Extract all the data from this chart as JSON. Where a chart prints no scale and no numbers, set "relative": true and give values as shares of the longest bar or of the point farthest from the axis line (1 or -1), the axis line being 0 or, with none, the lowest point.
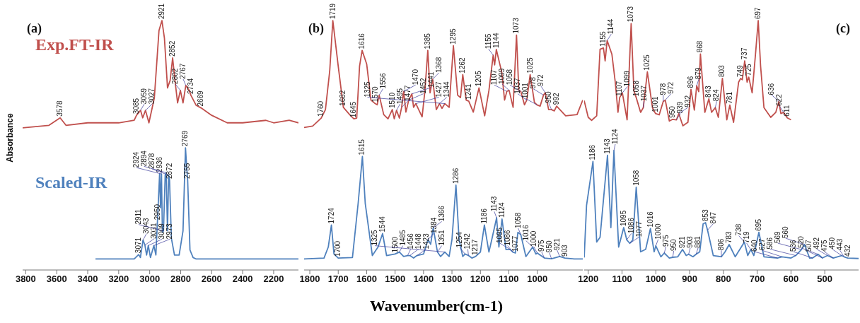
{
  "chart_data": [
    {
      "type": "line",
      "relative": true,
      "ylabel": "Absorbance",
      "xlim": [
        3820,
        2040
      ],
      "xticks": [
        3800,
        3600,
        3400,
        3200,
        3000,
        2800,
        2600,
        2400,
        2200
      ],
      "legend": false,
      "grid": false,
      "series": [
        {
          "name": "Exp.FT-IR",
          "color": "#c0504d",
          "x": [
            3820,
            3650,
            3578,
            3540,
            3400,
            3200,
            3100,
            3085,
            3059,
            3045,
            3027,
            3005,
            2970,
            2940,
            2921,
            2905,
            2885,
            2868,
            2852,
            2835,
            2820,
            2802,
            2785,
            2767,
            2745,
            2734,
            2700,
            2669,
            2600,
            2500,
            2400,
            2250,
            2200,
            2100,
            2040
          ],
          "values": [
            0.57,
            0.58,
            0.61,
            0.58,
            0.59,
            0.59,
            0.6,
            0.62,
            0.64,
            0.61,
            0.64,
            0.59,
            0.69,
            0.96,
            1.0,
            0.93,
            0.73,
            0.76,
            0.85,
            0.75,
            0.67,
            0.72,
            0.67,
            0.74,
            0.72,
            0.7,
            0.66,
            0.65,
            0.62,
            0.59,
            0.59,
            0.6,
            0.59,
            0.6,
            0.59
          ]
        },
        {
          "name": "Scaled-IR",
          "color": "#4f81bd",
          "x": [
            3350,
            3100,
            3071,
            3060,
            3043,
            3031,
            3020,
            3009,
            2995,
            2973,
            2960,
            2950,
            2936,
            2930,
            2924,
            2918,
            2911,
            2900,
            2894,
            2885,
            2878,
            2872,
            2860,
            2840,
            2810,
            2785,
            2769,
            2762,
            2755,
            2740,
            2720,
            2700,
            2040
          ],
          "values": [
            0.044,
            0.044,
            0.062,
            0.05,
            0.12,
            0.1,
            0.06,
            0.098,
            0.05,
            0.098,
            0.06,
            0.195,
            0.385,
            0.25,
            0.385,
            0.15,
            0.157,
            0.38,
            0.39,
            0.157,
            0.38,
            0.36,
            0.127,
            0.06,
            0.06,
            0.157,
            0.49,
            0.42,
            0.36,
            0.08,
            0.05,
            0.044,
            0.044
          ]
        }
      ],
      "annotations": [
        "(a)",
        {
          "text": "3578",
          "x": 3578,
          "y": 0.61
        },
        {
          "text": "3085",
          "x": 3085,
          "y": 0.62
        },
        {
          "text": "3059",
          "x": 3059,
          "y": 0.64
        },
        {
          "text": "3027",
          "x": 3027,
          "y": 0.64
        },
        {
          "text": "2921",
          "x": 2921,
          "y": 1.0
        },
        {
          "text": "2852",
          "x": 2852,
          "y": 0.85
        },
        {
          "text": "2802",
          "x": 2802,
          "y": 0.72
        },
        {
          "text": "2767",
          "x": 2767,
          "y": 0.74
        },
        {
          "text": "2734",
          "x": 2734,
          "y": 0.7
        },
        {
          "text": "2669",
          "x": 2669,
          "y": 0.65
        },
        {
          "text": "3071",
          "x": 3071,
          "y": 0.062
        },
        {
          "text": "3043",
          "x": 3043,
          "y": 0.12
        },
        {
          "text": "3031",
          "x": 3031,
          "y": 0.1
        },
        {
          "text": "3009",
          "x": 3009,
          "y": 0.098
        },
        {
          "text": "2973",
          "x": 2973,
          "y": 0.098
        },
        {
          "text": "2950",
          "x": 2950,
          "y": 0.195
        },
        {
          "text": "2936",
          "x": 2936,
          "y": 0.385
        },
        {
          "text": "2924",
          "x": 2924,
          "y": 0.385
        },
        {
          "text": "2911",
          "x": 2911,
          "y": 0.157
        },
        {
          "text": "2894",
          "x": 2894,
          "y": 0.39
        },
        {
          "text": "2878",
          "x": 2878,
          "y": 0.38
        },
        {
          "text": "2872",
          "x": 2872,
          "y": 0.36
        },
        {
          "text": "2769",
          "x": 2769,
          "y": 0.49
        },
        {
          "text": "2755",
          "x": 2755,
          "y": 0.36
        }
      ]
    },
    {
      "type": "line",
      "relative": true,
      "xlabel": "Wavenumber(cm-1)",
      "xlim": [
        1820,
        840
      ],
      "xticks": [
        1800,
        1700,
        1600,
        1500,
        1400,
        1300,
        1200,
        1100,
        1000
      ],
      "legend": false,
      "grid": false,
      "series": [
        {
          "color": "#c0504d",
          "x": [
            1820,
            1790,
            1760,
            1745,
            1730,
            1719,
            1700,
            1682,
            1660,
            1645,
            1635,
            1625,
            1616,
            1600,
            1585,
            1570,
            1563,
            1556,
            1540,
            1525,
            1510,
            1503,
            1495,
            1485,
            1477,
            1470,
            1462,
            1452,
            1441,
            1435,
            1427,
            1405,
            1395,
            1385,
            1377,
            1368,
            1355,
            1344,
            1335,
            1325,
            1310,
            1295,
            1280,
            1270,
            1262,
            1250,
            1241,
            1225,
            1205,
            1185,
            1170,
            1155,
            1150,
            1144,
            1125,
            1115,
            1107,
            1099,
            1085,
            1073,
            1065,
            1058,
            1045,
            1037,
            1025,
            1010,
            1001,
            990,
            978,
            972,
            960,
            950,
            940,
            932,
            900,
            860,
            840
          ],
          "values": [
            0.571,
            0.577,
            0.609,
            0.643,
            0.797,
            1.0,
            0.817,
            0.652,
            0.623,
            0.606,
            0.609,
            0.817,
            0.88,
            0.826,
            0.681,
            0.667,
            0.662,
            0.701,
            0.623,
            0.606,
            0.643,
            0.606,
            0.64,
            0.609,
            0.652,
            0.716,
            0.633,
            0.681,
            0.706,
            0.652,
            0.667,
            0.614,
            0.72,
            0.88,
            0.71,
            0.765,
            0.643,
            0.667,
            0.648,
            0.667,
            0.652,
            0.899,
            0.701,
            0.691,
            0.783,
            0.681,
            0.677,
            0.633,
            0.73,
            0.618,
            0.72,
            0.861,
            0.822,
            0.884,
            0.793,
            0.681,
            0.716,
            0.72,
            0.652,
            0.942,
            0.72,
            0.716,
            0.662,
            0.681,
            0.783,
            0.672,
            0.662,
            0.657,
            0.701,
            0.711,
            0.643,
            0.643,
            0.638,
            0.657,
            0.618,
            0.623,
            0.681
          ]
        },
        {
          "color": "#4f81bd",
          "x": [
            1820,
            1750,
            1735,
            1724,
            1715,
            1700,
            1650,
            1630,
            1615,
            1605,
            1580,
            1560,
            1544,
            1530,
            1500,
            1485,
            1470,
            1456,
            1448,
            1435,
            1423,
            1400,
            1384,
            1375,
            1366,
            1351,
            1340,
            1325,
            1310,
            1300,
            1286,
            1275,
            1262,
            1254,
            1242,
            1230,
            1217,
            1200,
            1186,
            1170,
            1160,
            1143,
            1135,
            1124,
            1110,
            1095,
            1086,
            1077,
            1068,
            1058,
            1040,
            1016,
            1005,
            1000,
            975,
            950,
            921,
            903,
            870,
            840
          ],
          "values": [
            0.044,
            0.048,
            0.092,
            0.18,
            0.064,
            0.048,
            0.05,
            0.267,
            0.455,
            0.267,
            0.058,
            0.092,
            0.146,
            0.058,
            0.064,
            0.072,
            0.054,
            0.058,
            0.058,
            0.048,
            0.058,
            0.064,
            0.122,
            0.103,
            0.169,
            0.072,
            0.054,
            0.072,
            0.054,
            0.122,
            0.34,
            0.122,
            0.054,
            0.064,
            0.058,
            0.048,
            0.054,
            0.072,
            0.18,
            0.072,
            0.122,
            0.209,
            0.092,
            0.204,
            0.082,
            0.082,
            0.072,
            0.068,
            0.151,
            0.142,
            0.054,
            0.092,
            0.064,
            0.068,
            0.048,
            0.045,
            0.054,
            0.048,
            0.044,
            0.044
          ]
        }
      ],
      "annotations": [
        "(b)",
        {
          "text": "1760",
          "x": 1760,
          "y": 0.609
        },
        {
          "text": "1719",
          "x": 1719,
          "y": 1.0
        },
        {
          "text": "1682",
          "x": 1682,
          "y": 0.652
        },
        {
          "text": "1645",
          "x": 1645,
          "y": 0.606
        },
        {
          "text": "1616",
          "x": 1616,
          "y": 0.88
        },
        {
          "text": "1570",
          "x": 1570,
          "y": 0.667
        },
        {
          "text": "1556",
          "x": 1556,
          "y": 0.701
        },
        {
          "text": "1510",
          "x": 1510,
          "y": 0.643
        },
        {
          "text": "1495",
          "x": 1495,
          "y": 0.64
        },
        {
          "text": "1477",
          "x": 1477,
          "y": 0.652
        },
        {
          "text": "1470",
          "x": 1470,
          "y": 0.716
        },
        {
          "text": "1452",
          "x": 1452,
          "y": 0.681
        },
        {
          "text": "1441",
          "x": 1441,
          "y": 0.706
        },
        {
          "text": "1427",
          "x": 1427,
          "y": 0.667
        },
        {
          "text": "1385",
          "x": 1385,
          "y": 0.88
        },
        {
          "text": "1368",
          "x": 1368,
          "y": 0.765
        },
        {
          "text": "1344",
          "x": 1344,
          "y": 0.667
        },
        {
          "text": "1325",
          "x": 1325,
          "y": 0.667
        },
        {
          "text": "1295",
          "x": 1295,
          "y": 0.899
        },
        {
          "text": "1262",
          "x": 1262,
          "y": 0.783
        },
        {
          "text": "1241",
          "x": 1241,
          "y": 0.677
        },
        {
          "text": "1205",
          "x": 1205,
          "y": 0.73
        },
        {
          "text": "1155",
          "x": 1155,
          "y": 0.861
        },
        {
          "text": "1144",
          "x": 1144,
          "y": 0.884
        },
        {
          "text": "1107",
          "x": 1107,
          "y": 0.716
        },
        {
          "text": "1099",
          "x": 1099,
          "y": 0.72
        },
        {
          "text": "1073",
          "x": 1073,
          "y": 0.942
        },
        {
          "text": "1058",
          "x": 1058,
          "y": 0.716
        },
        {
          "text": "1037",
          "x": 1037,
          "y": 0.681
        },
        {
          "text": "1025",
          "x": 1025,
          "y": 0.783
        },
        {
          "text": "1001",
          "x": 1001,
          "y": 0.662
        },
        {
          "text": "978",
          "x": 978,
          "y": 0.701
        },
        {
          "text": "972",
          "x": 972,
          "y": 0.711
        },
        {
          "text": "950",
          "x": 950,
          "y": 0.643
        },
        {
          "text": "992",
          "x": 932,
          "y": 0.657
        },
        {
          "text": "1724",
          "x": 1724,
          "y": 0.18
        },
        {
          "text": "1700",
          "x": 1700,
          "y": 0.048
        },
        {
          "text": "1615",
          "x": 1615,
          "y": 0.455
        },
        {
          "text": "1544",
          "x": 1544,
          "y": 0.146
        },
        {
          "text": "1500",
          "x": 1500,
          "y": 0.064
        },
        {
          "text": "1485",
          "x": 1485,
          "y": 0.072
        },
        {
          "text": "1456",
          "x": 1456,
          "y": 0.058
        },
        {
          "text": "1448",
          "x": 1448,
          "y": 0.058
        },
        {
          "text": "1423",
          "x": 1423,
          "y": 0.058
        },
        {
          "text": "1384",
          "x": 1384,
          "y": 0.122
        },
        {
          "text": "1366",
          "x": 1366,
          "y": 0.169
        },
        {
          "text": "1351",
          "x": 1351,
          "y": 0.072
        },
        {
          "text": "1325",
          "x": 1325,
          "y": 0.072
        },
        {
          "text": "1286",
          "x": 1286,
          "y": 0.34
        },
        {
          "text": "1254",
          "x": 1254,
          "y": 0.064
        },
        {
          "text": "1242",
          "x": 1242,
          "y": 0.058
        },
        {
          "text": "1217",
          "x": 1217,
          "y": 0.054
        },
        {
          "text": "1186",
          "x": 1186,
          "y": 0.18
        },
        {
          "text": "1143",
          "x": 1143,
          "y": 0.209
        },
        {
          "text": "1124",
          "x": 1124,
          "y": 0.204
        },
        {
          "text": "1095",
          "x": 1095,
          "y": 0.082
        },
        {
          "text": "1086",
          "x": 1086,
          "y": 0.072
        },
        {
          "text": "1077",
          "x": 1077,
          "y": 0.068
        },
        {
          "text": "1058",
          "x": 1058,
          "y": 0.142
        },
        {
          "text": "1016",
          "x": 1016,
          "y": 0.092
        },
        {
          "text": "1000",
          "x": 1000,
          "y": 0.068
        },
        {
          "text": "975",
          "x": 975,
          "y": 0.048
        },
        {
          "text": "950",
          "x": 950,
          "y": 0.045
        },
        {
          "text": "921",
          "x": 921,
          "y": 0.054
        },
        {
          "text": "903",
          "x": 903,
          "y": 0.048
        }
      ]
    },
    {
      "type": "line",
      "relative": true,
      "xlim": [
        1212,
        400
      ],
      "xticks": [
        1200,
        1100,
        1000,
        900,
        800,
        700,
        600,
        500
      ],
      "legend": false,
      "grid": false,
      "series": [
        {
          "color": "#c0504d",
          "x": [
            1212,
            1200,
            1190,
            1175,
            1165,
            1155,
            1150,
            1144,
            1130,
            1120,
            1112,
            1107,
            1099,
            1085,
            1073,
            1065,
            1058,
            1045,
            1037,
            1025,
            1010,
            1001,
            990,
            978,
            972,
            960,
            950,
            939,
            932,
            920,
            905,
            896,
            886,
            879,
            873,
            868,
            855,
            843,
            835,
            824,
            815,
            803,
            790,
            781,
            770,
            755,
            749,
            744,
            737,
            730,
            725,
            715,
            705,
            697,
            690,
            680,
            660,
            645,
            636,
            630,
            622,
            611,
            600
          ],
          "values": [
            0.679,
            0.612,
            0.6,
            0.618,
            0.885,
            0.89,
            0.838,
            0.92,
            0.865,
            0.753,
            0.632,
            0.691,
            0.71,
            0.602,
            0.988,
            0.72,
            0.691,
            0.632,
            0.651,
            0.794,
            0.651,
            0.627,
            0.622,
            0.676,
            0.681,
            0.597,
            0.604,
            0.602,
            0.627,
            0.578,
            0.592,
            0.724,
            0.641,
            0.739,
            0.715,
            0.866,
            0.632,
            0.686,
            0.632,
            0.651,
            0.612,
            0.768,
            0.602,
            0.661,
            0.592,
            0.753,
            0.768,
            0.763,
            0.838,
            0.753,
            0.773,
            0.71,
            0.866,
            1.0,
            0.818,
            0.651,
            0.612,
            0.632,
            0.676,
            0.627,
            0.632,
            0.61,
            0.602
          ]
        },
        {
          "color": "#4f81bd",
          "x": [
            1212,
            1205,
            1186,
            1175,
            1165,
            1143,
            1133,
            1124,
            1110,
            1095,
            1086,
            1077,
            1068,
            1058,
            1045,
            1030,
            1016,
            1005,
            1000,
            985,
            975,
            960,
            950,
            935,
            921,
            910,
            903,
            890,
            881,
            870,
            860,
            853,
            847,
            830,
            806,
            795,
            783,
            765,
            738,
            728,
            719,
            710,
            695,
            680,
            640,
            627,
            600,
            586,
            569,
            560,
            545,
            536,
            520,
            507,
            492,
            475,
            450,
            443,
            432,
            400
          ],
          "values": [
            0.05,
            0.259,
            0.435,
            0.112,
            0.131,
            0.46,
            0.17,
            0.479,
            0.092,
            0.17,
            0.121,
            0.107,
            0.121,
            0.332,
            0.073,
            0.083,
            0.166,
            0.073,
            0.097,
            0.053,
            0.068,
            0.048,
            0.051,
            0.053,
            0.082,
            0.058,
            0.063,
            0.053,
            0.063,
            0.073,
            0.185,
            0.19,
            0.16,
            0.058,
            0.053,
            0.073,
            0.102,
            0.053,
            0.112,
            0.058,
            0.082,
            0.058,
            0.151,
            0.053,
            0.048,
            0.053,
            0.048,
            0.058,
            0.082,
            0.102,
            0.048,
            0.048,
            0.063,
            0.048,
            0.058,
            0.048,
            0.058,
            0.053,
            0.048,
            0.046
          ]
        }
      ],
      "annotations": [
        "(c)",
        {
          "text": "1155",
          "x": 1155,
          "y": 0.89
        },
        {
          "text": "1144",
          "x": 1144,
          "y": 0.92
        },
        {
          "text": "1107",
          "x": 1107,
          "y": 0.691
        },
        {
          "text": "1099",
          "x": 1099,
          "y": 0.71
        },
        {
          "text": "1073",
          "x": 1073,
          "y": 0.988
        },
        {
          "text": "1058",
          "x": 1058,
          "y": 0.691
        },
        {
          "text": "1037",
          "x": 1037,
          "y": 0.651
        },
        {
          "text": "1025",
          "x": 1025,
          "y": 0.794
        },
        {
          "text": "1001",
          "x": 1001,
          "y": 0.627
        },
        {
          "text": "978",
          "x": 978,
          "y": 0.676
        },
        {
          "text": "972",
          "x": 972,
          "y": 0.681
        },
        {
          "text": "950",
          "x": 950,
          "y": 0.604
        },
        {
          "text": "939",
          "x": 939,
          "y": 0.602
        },
        {
          "text": "932",
          "x": 932,
          "y": 0.627
        },
        {
          "text": "896",
          "x": 896,
          "y": 0.724
        },
        {
          "text": "879",
          "x": 879,
          "y": 0.739
        },
        {
          "text": "868",
          "x": 868,
          "y": 0.866
        },
        {
          "text": "843",
          "x": 843,
          "y": 0.686
        },
        {
          "text": "824",
          "x": 824,
          "y": 0.651
        },
        {
          "text": "803",
          "x": 803,
          "y": 0.768
        },
        {
          "text": "781",
          "x": 781,
          "y": 0.661
        },
        {
          "text": "749",
          "x": 749,
          "y": 0.768
        },
        {
          "text": "737",
          "x": 737,
          "y": 0.838
        },
        {
          "text": "725",
          "x": 725,
          "y": 0.773
        },
        {
          "text": "697",
          "x": 697,
          "y": 1.0
        },
        {
          "text": "636",
          "x": 636,
          "y": 0.676
        },
        {
          "text": "622",
          "x": 622,
          "y": 0.632
        },
        {
          "text": "611",
          "x": 611,
          "y": 0.61
        },
        {
          "text": "1186",
          "x": 1186,
          "y": 0.435
        },
        {
          "text": "1143",
          "x": 1143,
          "y": 0.46
        },
        {
          "text": "1124",
          "x": 1124,
          "y": 0.479
        },
        {
          "text": "1095",
          "x": 1095,
          "y": 0.17
        },
        {
          "text": "1086",
          "x": 1086,
          "y": 0.121
        },
        {
          "text": "1077",
          "x": 1077,
          "y": 0.107
        },
        {
          "text": "1058",
          "x": 1058,
          "y": 0.332
        },
        {
          "text": "1016",
          "x": 1016,
          "y": 0.166
        },
        {
          "text": "1000",
          "x": 1000,
          "y": 0.097
        },
        {
          "text": "975",
          "x": 975,
          "y": 0.068
        },
        {
          "text": "950",
          "x": 950,
          "y": 0.051
        },
        {
          "text": "921",
          "x": 921,
          "y": 0.082
        },
        {
          "text": "903",
          "x": 903,
          "y": 0.063
        },
        {
          "text": "881",
          "x": 881,
          "y": 0.063
        },
        {
          "text": "853",
          "x": 853,
          "y": 0.19
        },
        {
          "text": "847",
          "x": 847,
          "y": 0.16
        },
        {
          "text": "806",
          "x": 806,
          "y": 0.053
        },
        {
          "text": "783",
          "x": 783,
          "y": 0.102
        },
        {
          "text": "738",
          "x": 738,
          "y": 0.112
        },
        {
          "text": "719",
          "x": 719,
          "y": 0.082
        },
        {
          "text": "695",
          "x": 695,
          "y": 0.151
        },
        {
          "text": "640",
          "x": 640,
          "y": 0.048
        },
        {
          "text": "627",
          "x": 627,
          "y": 0.053
        },
        {
          "text": "586",
          "x": 586,
          "y": 0.058
        },
        {
          "text": "569",
          "x": 569,
          "y": 0.082
        },
        {
          "text": "560",
          "x": 560,
          "y": 0.102
        },
        {
          "text": "536",
          "x": 536,
          "y": 0.048
        },
        {
          "text": "520",
          "x": 520,
          "y": 0.063
        },
        {
          "text": "507",
          "x": 507,
          "y": 0.048
        },
        {
          "text": "492",
          "x": 492,
          "y": 0.058
        },
        {
          "text": "475",
          "x": 475,
          "y": 0.048
        },
        {
          "text": "450",
          "x": 450,
          "y": 0.058
        },
        {
          "text": "443",
          "x": 443,
          "y": 0.053
        },
        {
          "text": "432",
          "x": 432,
          "y": 0.048
        }
      ]
    }
  ]
}
